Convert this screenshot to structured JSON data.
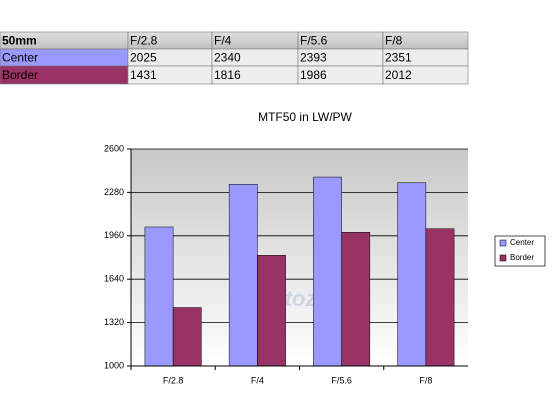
{
  "table": {
    "header": "50mm"
  },
  "chart_data": {
    "type": "bar",
    "title": "MTF50 in LW/PW",
    "watermark": "photozone",
    "categories": [
      "F/2.8",
      "F/4",
      "F/5.6",
      "F/8"
    ],
    "series": [
      {
        "name": "Center",
        "color": "#9999ff",
        "values": [
          2025,
          2340,
          2393,
          2351
        ]
      },
      {
        "name": "Border",
        "color": "#993366",
        "values": [
          1431,
          1816,
          1986,
          2012
        ]
      }
    ],
    "ylim": [
      1000,
      2600
    ],
    "yticks": [
      1000,
      1320,
      1640,
      1960,
      2280,
      2600
    ],
    "grid": true,
    "legend": "right"
  }
}
